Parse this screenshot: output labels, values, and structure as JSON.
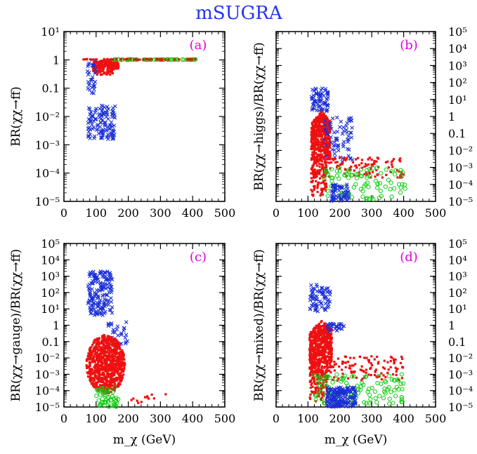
{
  "title": "mSUGRA",
  "colors": {
    "title": "#2233ee",
    "panel_label": "#dd00dd",
    "blue": "#1a2fd6",
    "red": "#ee1111",
    "green": "#11cc11",
    "axis": "#000000"
  },
  "chart_data": [
    {
      "id": "a",
      "type": "scatter",
      "label": "(a)",
      "ylabel": "BR(χχ→ff)",
      "xlabel": "",
      "xlim": [
        0,
        500
      ],
      "ylim_log10": [
        -5,
        1
      ],
      "xticks": [
        "0",
        "100",
        "200",
        "300",
        "400",
        "500"
      ],
      "yticks": [
        {
          "e": 1,
          "t": "10¹"
        },
        {
          "e": 0,
          "t": "1"
        },
        {
          "e": -1,
          "t": "0.1"
        },
        {
          "e": -2,
          "t": "10⁻²"
        },
        {
          "e": -3,
          "t": "10⁻³"
        },
        {
          "e": -4,
          "t": "10⁻⁴"
        },
        {
          "e": -5,
          "t": "10⁻⁵"
        }
      ],
      "ytick_side": "left",
      "clusters": [
        {
          "name": "red-band",
          "color": "red",
          "marker": "dot",
          "n": 260,
          "x": [
            90,
            170
          ],
          "y_log10": [
            -0.55,
            0.0
          ],
          "shape": "fan"
        },
        {
          "name": "blue-tail-high",
          "color": "blue",
          "marker": "x",
          "n": 30,
          "x": [
            70,
            100
          ],
          "y_log10": [
            -1.2,
            0.0
          ]
        },
        {
          "name": "blue-cluster",
          "color": "blue",
          "marker": "x",
          "n": 120,
          "x": [
            75,
            160
          ],
          "y_log10": [
            -2.8,
            -1.6
          ]
        },
        {
          "name": "green-band",
          "color": "green",
          "marker": "o",
          "n": 70,
          "x": [
            150,
            410
          ],
          "y_log10": [
            0.0,
            0.02
          ]
        },
        {
          "name": "red-band-ext",
          "color": "red",
          "marker": "dot",
          "n": 60,
          "x": [
            60,
            420
          ],
          "y_log10": [
            0.0,
            0.03
          ]
        }
      ]
    },
    {
      "id": "b",
      "type": "scatter",
      "label": "(b)",
      "ylabel": "BR(χχ→higgs)/BR(χχ→ff)",
      "xlabel": "",
      "xlim": [
        0,
        500
      ],
      "ylim_log10": [
        -5,
        5
      ],
      "xticks": [
        "0",
        "100",
        "200",
        "300",
        "400",
        "500"
      ],
      "yticks": [
        {
          "e": 5,
          "t": "10⁵"
        },
        {
          "e": 4,
          "t": "10⁴"
        },
        {
          "e": 3,
          "t": "10³"
        },
        {
          "e": 2,
          "t": "10²"
        },
        {
          "e": 1,
          "t": "10¹"
        },
        {
          "e": 0,
          "t": "1"
        },
        {
          "e": -1,
          "t": "0.1"
        },
        {
          "e": -2,
          "t": "10⁻²"
        },
        {
          "e": -3,
          "t": "10⁻³"
        },
        {
          "e": -4,
          "t": "10⁻⁴"
        },
        {
          "e": -5,
          "t": "10⁻⁵"
        }
      ],
      "ytick_side": "right",
      "clusters": [
        {
          "name": "blue-arc",
          "color": "blue",
          "marker": "x",
          "n": 70,
          "x": [
            110,
            165
          ],
          "y_log10": [
            0.3,
            1.7
          ]
        },
        {
          "name": "red-blob",
          "color": "red",
          "marker": "dot",
          "n": 650,
          "x": [
            110,
            170
          ],
          "y_log10": [
            -4.8,
            0.3
          ],
          "shape": "fan"
        },
        {
          "name": "blue-mid",
          "color": "blue",
          "marker": "x",
          "n": 70,
          "x": [
            150,
            240
          ],
          "y_log10": [
            -2.7,
            0.0
          ]
        },
        {
          "name": "red-scatter",
          "color": "red",
          "marker": "dot",
          "n": 110,
          "x": [
            150,
            400
          ],
          "y_log10": [
            -3.6,
            -2.4
          ]
        },
        {
          "name": "green-scatter",
          "color": "green",
          "marker": "o",
          "n": 90,
          "x": [
            150,
            410
          ],
          "y_log10": [
            -4.9,
            -3.0
          ]
        },
        {
          "name": "blue-low",
          "color": "blue",
          "marker": "x",
          "n": 60,
          "x": [
            170,
            230
          ],
          "y_log10": [
            -5.0,
            -4.0
          ]
        }
      ]
    },
    {
      "id": "c",
      "type": "scatter",
      "label": "(c)",
      "ylabel": "BR(χχ→gauge)/BR(χχ→ff)",
      "xlabel": "m_χ (GeV)",
      "xlim": [
        0,
        500
      ],
      "ylim_log10": [
        -5,
        5
      ],
      "xticks": [
        "0",
        "100",
        "200",
        "300",
        "400",
        "500"
      ],
      "yticks": [
        {
          "e": 5,
          "t": "10⁵"
        },
        {
          "e": 4,
          "t": "10⁴"
        },
        {
          "e": 3,
          "t": "10³"
        },
        {
          "e": 2,
          "t": "10²"
        },
        {
          "e": 1,
          "t": "10¹"
        },
        {
          "e": 0,
          "t": "1"
        },
        {
          "e": -1,
          "t": "0.1"
        },
        {
          "e": -2,
          "t": "10⁻²"
        },
        {
          "e": -3,
          "t": "10⁻³"
        },
        {
          "e": -4,
          "t": "10⁻⁴"
        },
        {
          "e": -5,
          "t": "10⁻⁵"
        }
      ],
      "ytick_side": "left",
      "clusters": [
        {
          "name": "blue-top",
          "color": "blue",
          "marker": "x",
          "n": 170,
          "x": [
            75,
            150
          ],
          "y_log10": [
            0.6,
            3.3
          ]
        },
        {
          "name": "blue-right",
          "color": "blue",
          "marker": "x",
          "n": 30,
          "x": [
            130,
            200
          ],
          "y_log10": [
            -1.2,
            0.2
          ]
        },
        {
          "name": "red-mass",
          "color": "red",
          "marker": "dot",
          "n": 900,
          "x": [
            70,
            190
          ],
          "y_log10": [
            -4.2,
            -0.6
          ],
          "shape": "blob"
        },
        {
          "name": "green-low",
          "color": "green",
          "marker": "o",
          "n": 50,
          "x": [
            100,
            170
          ],
          "y_log10": [
            -5.0,
            -3.8
          ]
        },
        {
          "name": "red-tail",
          "color": "red",
          "marker": "dot",
          "n": 12,
          "x": [
            170,
            330
          ],
          "y_log10": [
            -5.0,
            -4.2
          ]
        }
      ]
    },
    {
      "id": "d",
      "type": "scatter",
      "label": "(d)",
      "ylabel": "BR(χχ→mixed)/BR(χχ→ff)",
      "xlabel": "m_χ (GeV)",
      "xlim": [
        0,
        500
      ],
      "ylim_log10": [
        -5,
        5
      ],
      "xticks": [
        "0",
        "100",
        "200",
        "300",
        "400",
        "500"
      ],
      "yticks": [
        {
          "e": 5,
          "t": "10⁵"
        },
        {
          "e": 4,
          "t": "10⁴"
        },
        {
          "e": 3,
          "t": "10³"
        },
        {
          "e": 2,
          "t": "10²"
        },
        {
          "e": 1,
          "t": "10¹"
        },
        {
          "e": 0,
          "t": "1"
        },
        {
          "e": -1,
          "t": "0.1"
        },
        {
          "e": -2,
          "t": "10⁻²"
        },
        {
          "e": -3,
          "t": "10⁻³"
        },
        {
          "e": -4,
          "t": "10⁻⁴"
        },
        {
          "e": -5,
          "t": "10⁻⁵"
        }
      ],
      "ytick_side": "right",
      "clusters": [
        {
          "name": "blue-arc",
          "color": "blue",
          "marker": "x",
          "n": 70,
          "x": [
            105,
            170
          ],
          "y_log10": [
            0.8,
            2.5
          ]
        },
        {
          "name": "red-blob",
          "color": "red",
          "marker": "dot",
          "n": 700,
          "x": [
            105,
            175
          ],
          "y_log10": [
            -4.9,
            0.3
          ],
          "shape": "fan"
        },
        {
          "name": "blue-mid",
          "color": "blue",
          "marker": "x",
          "n": 30,
          "x": [
            160,
            220
          ],
          "y_log10": [
            -0.4,
            0.1
          ]
        },
        {
          "name": "red-scatter",
          "color": "red",
          "marker": "dot",
          "n": 120,
          "x": [
            150,
            400
          ],
          "y_log10": [
            -3.4,
            -1.9
          ]
        },
        {
          "name": "green-scatter",
          "color": "green",
          "marker": "o",
          "n": 120,
          "x": [
            120,
            400
          ],
          "y_log10": [
            -4.8,
            -3.0
          ]
        },
        {
          "name": "blue-low",
          "color": "blue",
          "marker": "x",
          "n": 180,
          "x": [
            160,
            250
          ],
          "y_log10": [
            -5.0,
            -3.8
          ]
        }
      ]
    }
  ]
}
